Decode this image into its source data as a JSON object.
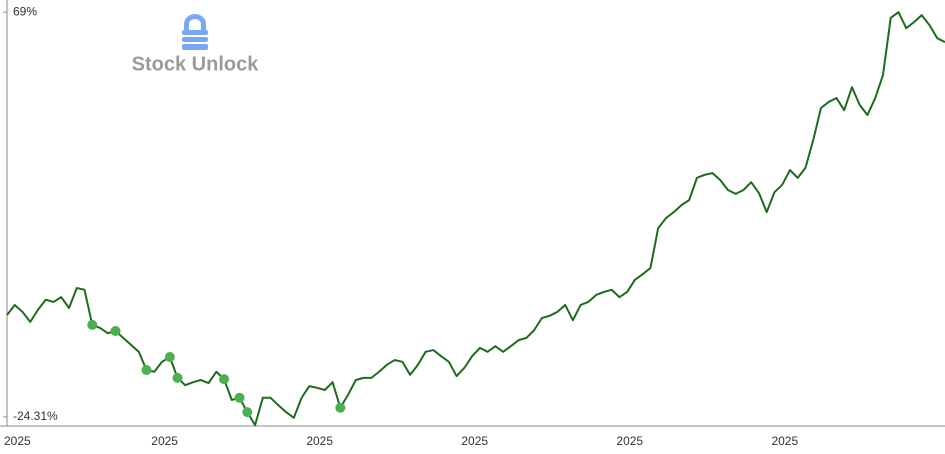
{
  "chart_data": {
    "type": "line",
    "watermark": "Stock Unlock",
    "categories": [
      "2025",
      null,
      null,
      null,
      null,
      null,
      null,
      null,
      null,
      null,
      null,
      null,
      null,
      null,
      null,
      null,
      null,
      null,
      null,
      "2025",
      null,
      null,
      null,
      null,
      null,
      null,
      null,
      null,
      null,
      null,
      null,
      null,
      null,
      null,
      null,
      null,
      null,
      null,
      null,
      "2025",
      null,
      null,
      null,
      null,
      null,
      null,
      null,
      null,
      null,
      null,
      null,
      null,
      null,
      null,
      null,
      null,
      null,
      null,
      null,
      "2025",
      null,
      null,
      null,
      null,
      null,
      null,
      null,
      null,
      null,
      null,
      null,
      null,
      null,
      null,
      null,
      null,
      null,
      null,
      null,
      "2025",
      null,
      null,
      null,
      null,
      null,
      null,
      null,
      null,
      null,
      null,
      null,
      null,
      null,
      null,
      null,
      null,
      null,
      null,
      null,
      "2025",
      null,
      null,
      null,
      null,
      null,
      null,
      null,
      null,
      null,
      null,
      null,
      null,
      null,
      null,
      null,
      null,
      null,
      null,
      null,
      null,
      null,
      null
    ],
    "series": [
      {
        "color": "#1e6b1e",
        "marker": "none",
        "values": [
          -0.8,
          1.5,
          -0.1,
          -2.4,
          0.4,
          2.7,
          2.2,
          3.3,
          0.8,
          5.4,
          5.0,
          -3.1,
          -3.8,
          -5.0,
          -4.5,
          -6.1,
          -7.7,
          -9.3,
          -13.5,
          -13.9,
          -11.6,
          -10.5,
          -15.3,
          -17.0,
          -16.3,
          -15.8,
          -16.5,
          -13.9,
          -15.6,
          -20.4,
          -19.9,
          -23.2,
          -26.2,
          -19.9,
          -19.9,
          -21.6,
          -23.2,
          -24.5,
          -19.9,
          -17.2,
          -17.6,
          -18.1,
          -16.3,
          -22.2,
          -19.2,
          -15.8,
          -15.3,
          -15.3,
          -13.9,
          -12.3,
          -11.2,
          -11.6,
          -14.6,
          -12.3,
          -9.3,
          -8.9,
          -10.3,
          -11.6,
          -14.9,
          -13.0,
          -10.3,
          -8.4,
          -9.3,
          -8.0,
          -9.3,
          -8.0,
          -6.6,
          -6.1,
          -4.3,
          -1.5,
          -1.0,
          -0.1,
          1.5,
          -2.0,
          1.5,
          2.2,
          3.8,
          4.5,
          5.0,
          3.3,
          4.5,
          7.3,
          8.6,
          10.0,
          19.2,
          21.5,
          22.9,
          24.5,
          25.7,
          30.8,
          31.5,
          31.9,
          30.3,
          28.0,
          27.1,
          28.0,
          29.8,
          27.3,
          22.9,
          27.5,
          29.2,
          32.6,
          30.8,
          33.1,
          39.5,
          46.9,
          48.3,
          49.2,
          46.4,
          51.7,
          47.6,
          45.3,
          49.2,
          54.5,
          67.7,
          69.0,
          65.3,
          66.7,
          68.3,
          66.0,
          63.0,
          62.1
        ]
      },
      {
        "color": "#4caf50",
        "marker": "dot",
        "values": [
          null,
          null,
          null,
          null,
          null,
          null,
          null,
          null,
          null,
          null,
          null,
          -3.1,
          null,
          null,
          -4.5,
          null,
          null,
          null,
          -13.5,
          null,
          null,
          -10.5,
          -15.3,
          null,
          null,
          null,
          null,
          null,
          -15.6,
          null,
          -19.9,
          -23.2,
          null,
          null,
          null,
          null,
          null,
          null,
          null,
          null,
          null,
          null,
          null,
          -22.2,
          null,
          null,
          null,
          null,
          null,
          null,
          null,
          null,
          null,
          null,
          null,
          null,
          null,
          null,
          null,
          null,
          null,
          null,
          null,
          null,
          null,
          null,
          null,
          null,
          null,
          null,
          null,
          null,
          null,
          null,
          null,
          null,
          null,
          null,
          null,
          null,
          null,
          null,
          null,
          null,
          null,
          null,
          null,
          null,
          null,
          null,
          null,
          null,
          null,
          null,
          null,
          null,
          null,
          null,
          null,
          null,
          null,
          null,
          null,
          null,
          null,
          null,
          null,
          null,
          null,
          null,
          null,
          null,
          null,
          null,
          null,
          null,
          null,
          null,
          null,
          null,
          null,
          null
        ]
      }
    ],
    "ylim": [
      -26.4,
      71.8
    ],
    "yticks": [
      {
        "value": 69,
        "label": "69%"
      },
      {
        "value": -24.31,
        "label": "-24.31%"
      }
    ],
    "grid": false
  }
}
